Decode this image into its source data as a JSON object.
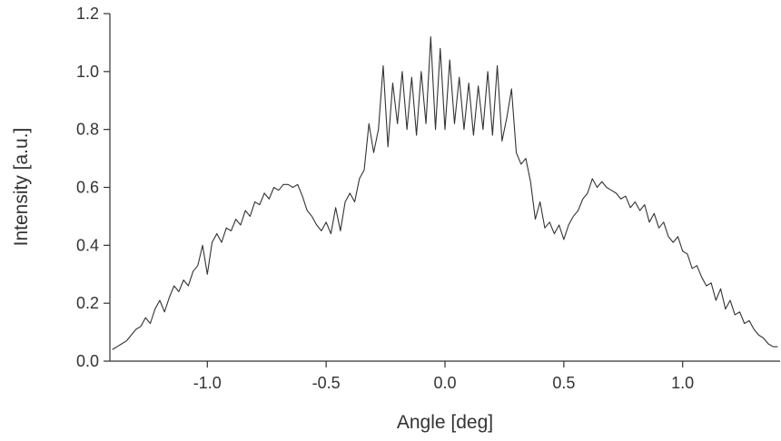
{
  "chart_data": {
    "type": "line",
    "xlabel": "Angle [deg]",
    "ylabel": "Intensity [a.u.]",
    "xlim": [
      -1.41,
      1.41
    ],
    "ylim": [
      0,
      1.2
    ],
    "xticks": [
      {
        "value": -1,
        "label": "-1.0"
      },
      {
        "value": -0.5,
        "label": "-0.5"
      },
      {
        "value": 0,
        "label": "0.0"
      },
      {
        "value": 0.5,
        "label": "0.5"
      },
      {
        "value": 1,
        "label": "1.0"
      }
    ],
    "yticks": [
      {
        "value": 0,
        "label": "0.0"
      },
      {
        "value": 0.2,
        "label": "0.2"
      },
      {
        "value": 0.4,
        "label": "0.4"
      },
      {
        "value": 0.6,
        "label": "0.6"
      },
      {
        "value": 0.8,
        "label": "0.8"
      },
      {
        "value": 1,
        "label": "1.0"
      },
      {
        "value": 1.2,
        "label": "1.2"
      }
    ],
    "color": "#333333",
    "x": [
      -1.4,
      -1.38,
      -1.36,
      -1.34,
      -1.32,
      -1.3,
      -1.28,
      -1.26,
      -1.24,
      -1.22,
      -1.2,
      -1.18,
      -1.16,
      -1.14,
      -1.12,
      -1.1,
      -1.08,
      -1.06,
      -1.04,
      -1.02,
      -1.0,
      -0.98,
      -0.96,
      -0.94,
      -0.92,
      -0.9,
      -0.88,
      -0.86,
      -0.84,
      -0.82,
      -0.8,
      -0.78,
      -0.76,
      -0.74,
      -0.72,
      -0.7,
      -0.68,
      -0.66,
      -0.64,
      -0.62,
      -0.6,
      -0.58,
      -0.56,
      -0.54,
      -0.52,
      -0.5,
      -0.48,
      -0.46,
      -0.44,
      -0.42,
      -0.4,
      -0.38,
      -0.36,
      -0.34,
      -0.32,
      -0.3,
      -0.28,
      -0.26,
      -0.24,
      -0.22,
      -0.2,
      -0.18,
      -0.16,
      -0.14,
      -0.12,
      -0.1,
      -0.08,
      -0.06,
      -0.04,
      -0.02,
      0.0,
      0.02,
      0.04,
      0.06,
      0.08,
      0.1,
      0.12,
      0.14,
      0.16,
      0.18,
      0.2,
      0.22,
      0.24,
      0.26,
      0.28,
      0.3,
      0.32,
      0.34,
      0.36,
      0.38,
      0.4,
      0.42,
      0.44,
      0.46,
      0.48,
      0.5,
      0.52,
      0.54,
      0.56,
      0.58,
      0.6,
      0.62,
      0.64,
      0.66,
      0.68,
      0.7,
      0.72,
      0.74,
      0.76,
      0.78,
      0.8,
      0.82,
      0.84,
      0.86,
      0.88,
      0.9,
      0.92,
      0.94,
      0.96,
      0.98,
      1.0,
      1.02,
      1.04,
      1.06,
      1.08,
      1.1,
      1.12,
      1.14,
      1.16,
      1.18,
      1.2,
      1.22,
      1.24,
      1.26,
      1.28,
      1.3,
      1.32,
      1.34,
      1.36,
      1.38,
      1.4
    ],
    "values": [
      0.04,
      0.05,
      0.06,
      0.07,
      0.09,
      0.11,
      0.12,
      0.15,
      0.13,
      0.18,
      0.21,
      0.17,
      0.22,
      0.26,
      0.24,
      0.28,
      0.26,
      0.31,
      0.33,
      0.4,
      0.3,
      0.41,
      0.44,
      0.41,
      0.46,
      0.45,
      0.49,
      0.47,
      0.52,
      0.5,
      0.55,
      0.54,
      0.58,
      0.56,
      0.6,
      0.59,
      0.61,
      0.61,
      0.6,
      0.61,
      0.57,
      0.52,
      0.5,
      0.47,
      0.45,
      0.48,
      0.44,
      0.53,
      0.45,
      0.55,
      0.58,
      0.55,
      0.63,
      0.66,
      0.82,
      0.72,
      0.8,
      1.02,
      0.74,
      0.96,
      0.82,
      1.0,
      0.8,
      0.98,
      0.78,
      1.0,
      0.82,
      1.12,
      0.8,
      1.08,
      0.8,
      1.04,
      0.82,
      0.98,
      0.8,
      0.96,
      0.78,
      0.95,
      0.8,
      1.0,
      0.78,
      1.02,
      0.76,
      0.84,
      0.94,
      0.72,
      0.68,
      0.7,
      0.62,
      0.49,
      0.55,
      0.46,
      0.48,
      0.44,
      0.47,
      0.42,
      0.47,
      0.5,
      0.52,
      0.56,
      0.58,
      0.63,
      0.6,
      0.62,
      0.6,
      0.59,
      0.58,
      0.56,
      0.57,
      0.53,
      0.55,
      0.52,
      0.54,
      0.48,
      0.51,
      0.46,
      0.48,
      0.43,
      0.41,
      0.43,
      0.38,
      0.37,
      0.32,
      0.33,
      0.29,
      0.26,
      0.27,
      0.21,
      0.25,
      0.18,
      0.21,
      0.16,
      0.17,
      0.13,
      0.14,
      0.11,
      0.09,
      0.08,
      0.06,
      0.05,
      0.05
    ]
  }
}
